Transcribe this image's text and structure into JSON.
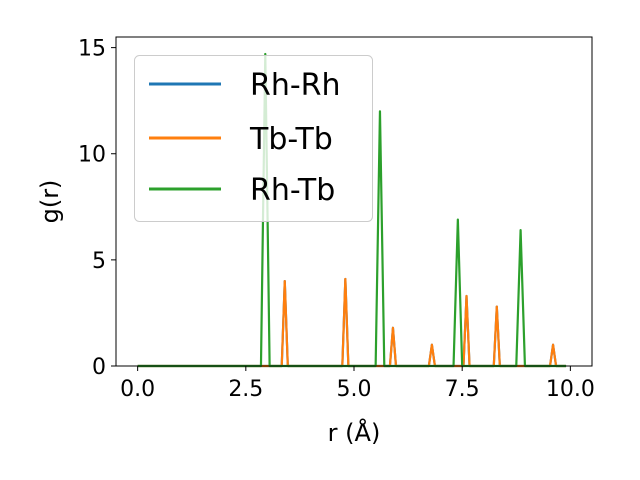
{
  "chart_data": {
    "type": "line",
    "xlabel": "r (Å)",
    "ylabel": "g(r)",
    "xlim": [
      -0.5,
      10.5
    ],
    "ylim": [
      0,
      15.5
    ],
    "xticks": [
      0.0,
      2.5,
      5.0,
      7.5,
      10.0
    ],
    "xtick_labels": [
      "0.0",
      "2.5",
      "5.0",
      "7.5",
      "10.0"
    ],
    "yticks": [
      0,
      5,
      10,
      15
    ],
    "ytick_labels": [
      "0",
      "5",
      "10",
      "15"
    ],
    "grid": false,
    "legend_position": "upper-left",
    "colors": {
      "Rh-Rh": "#1f77b4",
      "Tb-Tb": "#ff7f0e",
      "Rh-Tb": "#2ca02c"
    },
    "series": [
      {
        "name": "Rh-Rh",
        "x": [
          0.0,
          3.33,
          3.4,
          3.47,
          4.73,
          4.8,
          4.87,
          5.83,
          5.9,
          5.97,
          6.73,
          6.8,
          6.87,
          7.53,
          7.6,
          7.67,
          8.23,
          8.3,
          8.37,
          9.53,
          9.6,
          9.67,
          9.9
        ],
        "y": [
          0,
          0,
          4.0,
          0,
          0,
          4.1,
          0,
          0,
          1.8,
          0,
          0,
          1.0,
          0,
          0,
          3.3,
          0,
          0,
          2.8,
          0,
          0,
          1.0,
          0,
          0
        ]
      },
      {
        "name": "Tb-Tb",
        "x": [
          0.0,
          3.33,
          3.4,
          3.47,
          4.73,
          4.8,
          4.87,
          5.83,
          5.9,
          5.97,
          6.73,
          6.8,
          6.87,
          7.53,
          7.6,
          7.67,
          8.23,
          8.3,
          8.37,
          9.53,
          9.6,
          9.67,
          9.9
        ],
        "y": [
          0,
          0,
          4.0,
          0,
          0,
          4.1,
          0,
          0,
          1.8,
          0,
          0,
          1.0,
          0,
          0,
          3.3,
          0,
          0,
          2.8,
          0,
          0,
          1.0,
          0,
          0
        ]
      },
      {
        "name": "Rh-Tb",
        "x": [
          0.0,
          2.85,
          2.95,
          3.05,
          5.5,
          5.6,
          5.7,
          7.3,
          7.4,
          7.5,
          8.75,
          8.85,
          8.95,
          9.9
        ],
        "y": [
          0,
          0,
          14.7,
          0,
          0,
          12.0,
          0,
          0,
          6.9,
          0,
          0,
          6.4,
          0,
          0
        ]
      }
    ]
  }
}
